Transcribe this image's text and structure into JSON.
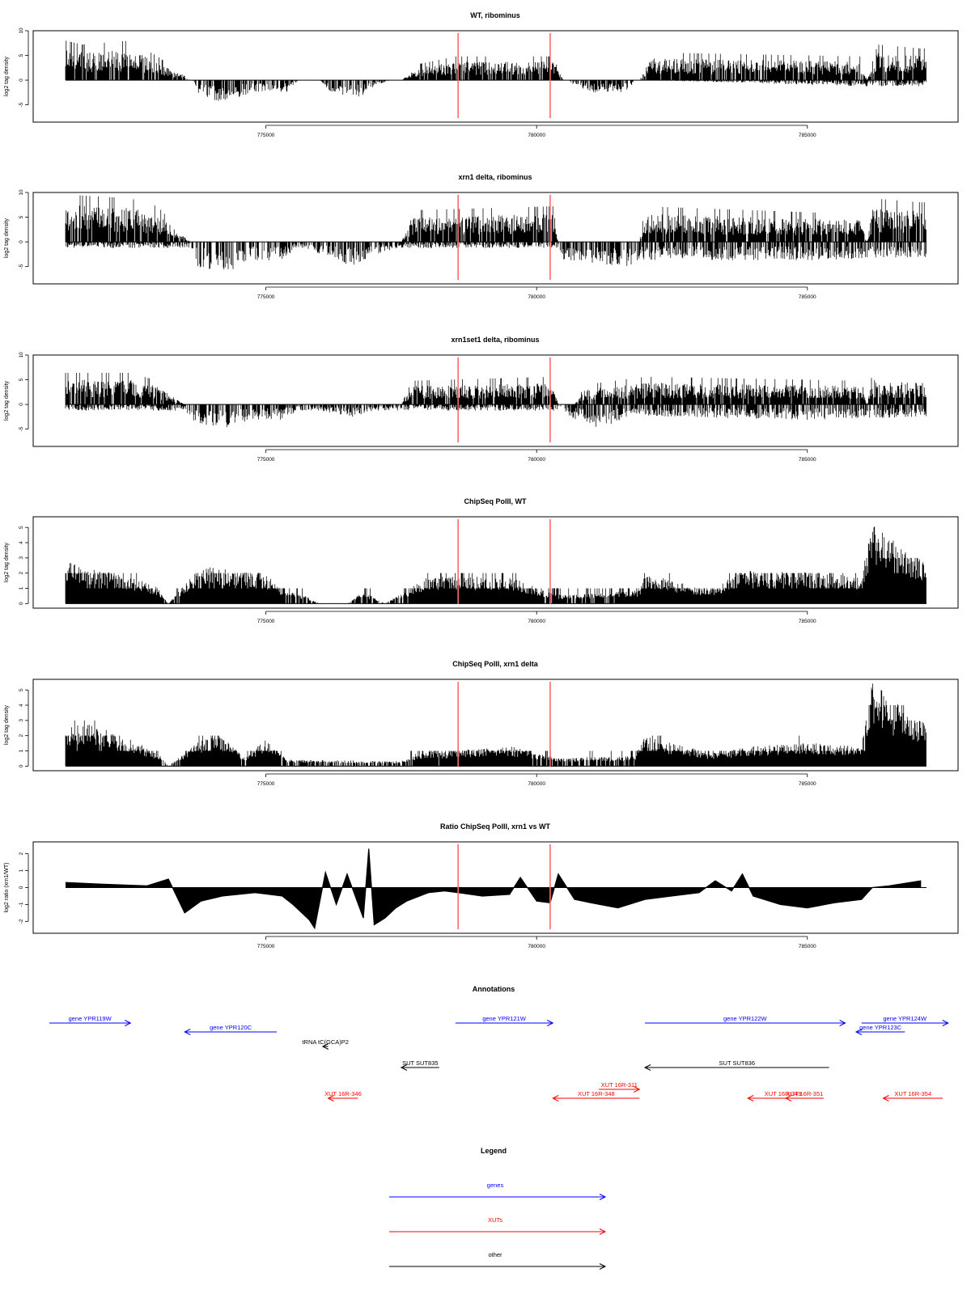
{
  "figure": {
    "x_domain": [
      771300,
      787200
    ],
    "x_ticks": [
      775000,
      780000,
      785000
    ],
    "marker_lines": [
      778550,
      780250
    ],
    "marker_color": "#ff6b6b"
  },
  "chart_data": [
    {
      "id": "wt-ribominus",
      "type": "bar",
      "title": "WT, ribominus",
      "ylabel": "log2 tag density",
      "ylim": [
        -8.5,
        10
      ],
      "yticks": [
        -5,
        0,
        5,
        10
      ],
      "xlabel": "",
      "grid": false,
      "signal_profile": {
        "plus": [
          [
            771300,
            5
          ],
          [
            771600,
            4.5
          ],
          [
            772500,
            5
          ],
          [
            773000,
            3
          ],
          [
            773600,
            0
          ],
          [
            777500,
            0
          ],
          [
            777800,
            2
          ],
          [
            778500,
            3
          ],
          [
            780300,
            3
          ],
          [
            780500,
            0
          ],
          [
            781900,
            0
          ],
          [
            782100,
            3.5
          ],
          [
            786000,
            3
          ],
          [
            786100,
            0
          ],
          [
            786300,
            4.5
          ],
          [
            787100,
            4
          ]
        ],
        "minus": [
          [
            771300,
            0
          ],
          [
            773650,
            0
          ],
          [
            773800,
            -3
          ],
          [
            774200,
            -3.5
          ],
          [
            774800,
            -2
          ],
          [
            775400,
            -2
          ],
          [
            775600,
            0
          ],
          [
            776000,
            0
          ],
          [
            776200,
            -2
          ],
          [
            776700,
            -3
          ],
          [
            777000,
            -1
          ],
          [
            777300,
            0
          ],
          [
            780600,
            0
          ],
          [
            780700,
            -1
          ],
          [
            781000,
            -2
          ],
          [
            781700,
            -2
          ],
          [
            781800,
            0
          ],
          [
            782000,
            0
          ],
          [
            786000,
            -1
          ],
          [
            787100,
            -1
          ]
        ]
      }
    },
    {
      "id": "xrn1-ribominus",
      "type": "bar",
      "title": "xrn1 delta, ribominus",
      "ylabel": "log2 tag density",
      "ylim": [
        -8.5,
        10
      ],
      "yticks": [
        -5,
        0,
        5,
        10
      ],
      "xlabel": "",
      "grid": false,
      "signal_profile": {
        "plus": [
          [
            771300,
            6
          ],
          [
            772500,
            5.5
          ],
          [
            773000,
            4.5
          ],
          [
            773600,
            0
          ],
          [
            777500,
            0
          ],
          [
            777700,
            4
          ],
          [
            780300,
            4.5
          ],
          [
            780400,
            0
          ],
          [
            781900,
            0
          ],
          [
            782000,
            4.5
          ],
          [
            786000,
            3.5
          ],
          [
            786100,
            0
          ],
          [
            786200,
            5.5
          ],
          [
            787100,
            5
          ]
        ],
        "minus": [
          [
            771300,
            -1
          ],
          [
            773600,
            -1
          ],
          [
            773700,
            -4
          ],
          [
            774300,
            -5
          ],
          [
            774800,
            -3
          ],
          [
            775300,
            -3
          ],
          [
            775600,
            -1
          ],
          [
            776000,
            -2
          ],
          [
            776600,
            -4
          ],
          [
            777000,
            -2
          ],
          [
            777500,
            -1
          ],
          [
            780400,
            -1
          ],
          [
            780500,
            -3
          ],
          [
            781500,
            -4
          ],
          [
            781700,
            -4
          ],
          [
            781900,
            -3
          ],
          [
            785000,
            -3
          ],
          [
            787100,
            -2.5
          ]
        ]
      }
    },
    {
      "id": "xrn1set1-ribominus",
      "type": "bar",
      "title": "xrn1set1 delta, ribominus",
      "ylabel": "log2 tag density",
      "ylim": [
        -8.5,
        10
      ],
      "yticks": [
        -5,
        0,
        5,
        10
      ],
      "xlabel": "",
      "grid": false,
      "signal_profile": {
        "plus": [
          [
            771300,
            4
          ],
          [
            772500,
            4
          ],
          [
            773000,
            3
          ],
          [
            773500,
            0
          ],
          [
            777500,
            0
          ],
          [
            777700,
            3
          ],
          [
            780300,
            3.5
          ],
          [
            780400,
            0
          ],
          [
            780700,
            0
          ],
          [
            780900,
            2.5
          ],
          [
            782000,
            3.5
          ],
          [
            786000,
            3
          ],
          [
            786100,
            0
          ],
          [
            786200,
            4
          ],
          [
            787100,
            3.5
          ]
        ],
        "minus": [
          [
            771300,
            -1
          ],
          [
            773500,
            -1
          ],
          [
            773700,
            -3
          ],
          [
            774200,
            -4
          ],
          [
            774800,
            -2.5
          ],
          [
            775300,
            -2.5
          ],
          [
            775600,
            -1
          ],
          [
            776000,
            -1
          ],
          [
            776600,
            -2
          ],
          [
            777000,
            -1
          ],
          [
            780400,
            -1
          ],
          [
            780600,
            -2
          ],
          [
            781200,
            -4
          ],
          [
            781700,
            -2
          ],
          [
            782500,
            -2
          ],
          [
            785000,
            -2.5
          ],
          [
            787100,
            -2
          ]
        ]
      }
    },
    {
      "id": "chipseq-wt",
      "type": "bar",
      "title": "ChipSeq PolII, WT",
      "ylabel": "log2 tag density",
      "ylim": [
        -0.3,
        5.7
      ],
      "yticks": [
        0,
        1,
        2,
        3,
        4,
        5
      ],
      "xlabel": "",
      "grid": false,
      "signal_profile": {
        "plus": [
          [
            771300,
            2.5
          ],
          [
            772500,
            1.6
          ],
          [
            773000,
            1
          ],
          [
            773200,
            0
          ],
          [
            773800,
            2.3
          ],
          [
            775100,
            1.6
          ],
          [
            775300,
            0.8
          ],
          [
            775700,
            0.5
          ],
          [
            776000,
            0
          ],
          [
            776500,
            0
          ],
          [
            776800,
            0.7
          ],
          [
            777200,
            0
          ],
          [
            777600,
            0.8
          ],
          [
            778000,
            1.6
          ],
          [
            779500,
            1.6
          ],
          [
            780300,
            0.6
          ],
          [
            780600,
            0.5
          ],
          [
            781900,
            0.8
          ],
          [
            782000,
            1.8
          ],
          [
            783200,
            0.8
          ],
          [
            783800,
            2
          ],
          [
            785500,
            1.8
          ],
          [
            786000,
            1.6
          ],
          [
            786200,
            4.8
          ],
          [
            786900,
            3
          ],
          [
            787100,
            2.6
          ]
        ]
      }
    },
    {
      "id": "chipseq-xrn1",
      "type": "bar",
      "title": "ChipSeq PolII, xrn1 delta",
      "ylabel": "log2 tag density",
      "ylim": [
        -0.3,
        5.7
      ],
      "yticks": [
        0,
        1,
        2,
        3,
        4,
        5
      ],
      "xlabel": "",
      "grid": false,
      "signal_profile": {
        "plus": [
          [
            771300,
            2.4
          ],
          [
            771800,
            2.5
          ],
          [
            772500,
            1.6
          ],
          [
            773000,
            0.8
          ],
          [
            773200,
            0
          ],
          [
            773800,
            1.6
          ],
          [
            774200,
            1.8
          ],
          [
            774600,
            0.5
          ],
          [
            775000,
            1.6
          ],
          [
            775400,
            0.4
          ],
          [
            777500,
            0.3
          ],
          [
            777800,
            0.8
          ],
          [
            779500,
            1.2
          ],
          [
            780200,
            0.6
          ],
          [
            780500,
            0.5
          ],
          [
            781800,
            0.6
          ],
          [
            782000,
            1.8
          ],
          [
            783200,
            0.8
          ],
          [
            784000,
            1.2
          ],
          [
            785000,
            1.4
          ],
          [
            786000,
            1.2
          ],
          [
            786200,
            5
          ],
          [
            786900,
            3.2
          ],
          [
            787100,
            2.8
          ]
        ]
      }
    },
    {
      "id": "ratio-chipseq",
      "type": "area",
      "title": "Ratio ChipSeq PolII, xrn1 vs WT",
      "ylabel": "log2 ratio (xrn1/WT)",
      "ylim": [
        -2.7,
        2.7
      ],
      "yticks": [
        -2,
        -1,
        0,
        1,
        2
      ],
      "xlabel": "",
      "grid": false,
      "x": [
        771300,
        772000,
        772800,
        773200,
        773500,
        773800,
        774200,
        774800,
        775300,
        775500,
        775800,
        775900,
        776100,
        776300,
        776500,
        776800,
        776900,
        777000,
        777200,
        777400,
        777600,
        778000,
        778300,
        778550,
        779000,
        779500,
        779700,
        780000,
        780250,
        780400,
        780700,
        781000,
        781500,
        782000,
        782500,
        783000,
        783300,
        783600,
        783800,
        784000,
        784500,
        785000,
        785500,
        786000,
        786200,
        786500,
        787100
      ],
      "y": [
        0.3,
        0.2,
        0.1,
        0.5,
        -1.5,
        -0.8,
        -0.5,
        -0.3,
        -0.5,
        -1,
        -1.9,
        -2.4,
        0.9,
        -1,
        0.8,
        -1.8,
        2.3,
        -2.2,
        -1.8,
        -1.2,
        -0.8,
        -0.3,
        -0.2,
        -0.3,
        -0.5,
        -0.4,
        0.6,
        -0.8,
        -0.9,
        0.8,
        -0.7,
        -0.9,
        -1.2,
        -0.7,
        -0.5,
        -0.3,
        0.4,
        -0.2,
        0.8,
        -0.5,
        -1,
        -1.2,
        -0.9,
        -0.7,
        0,
        0.1,
        0.4
      ]
    }
  ],
  "annotations": {
    "title": "Annotations",
    "items": [
      {
        "label": "gene YPR119W",
        "category": "genes",
        "start": 771000,
        "end": 772500,
        "direction": "forward",
        "row": 1
      },
      {
        "label": "gene YPR120C",
        "category": "genes",
        "start": 773500,
        "end": 775200,
        "direction": "reverse",
        "row": 2
      },
      {
        "label": "tRNA tC(GCA)P2",
        "category": "other",
        "start": 776050,
        "end": 776150,
        "direction": "reverse",
        "row": 3
      },
      {
        "label": "SUT SUT835",
        "category": "other",
        "start": 777500,
        "end": 778200,
        "direction": "reverse",
        "row": 4
      },
      {
        "label": "XUT 16R-346",
        "category": "XUTs",
        "start": 776150,
        "end": 776700,
        "direction": "reverse",
        "row": 5
      },
      {
        "label": "gene YPR121W",
        "category": "genes",
        "start": 778500,
        "end": 780300,
        "direction": "forward",
        "row": 1
      },
      {
        "label": "XUT 16R-311",
        "category": "XUTs",
        "start": 781150,
        "end": 781900,
        "direction": "forward",
        "row": 6
      },
      {
        "label": "XUT 16R-348",
        "category": "XUTs",
        "start": 780300,
        "end": 781900,
        "direction": "reverse",
        "row": 5
      },
      {
        "label": "gene YPR122W",
        "category": "genes",
        "start": 782000,
        "end": 785700,
        "direction": "forward",
        "row": 1
      },
      {
        "label": "SUT SUT836",
        "category": "other",
        "start": 782000,
        "end": 785400,
        "direction": "reverse",
        "row": 4
      },
      {
        "label": "XUT 16R-349",
        "category": "XUTs",
        "start": 783900,
        "end": 785200,
        "direction": "reverse",
        "row": 5
      },
      {
        "label": "XUT 16R-351",
        "category": "XUTs",
        "start": 784600,
        "end": 785300,
        "direction": "reverse",
        "row": 5
      },
      {
        "label": "gene YPR123C",
        "category": "genes",
        "start": 785900,
        "end": 786800,
        "direction": "reverse",
        "row": 2
      },
      {
        "label": "gene YPR124W",
        "category": "genes",
        "start": 786000,
        "end": 787600,
        "direction": "forward",
        "row": 1
      },
      {
        "label": "XUT 16R-354",
        "category": "XUTs",
        "start": 786400,
        "end": 787500,
        "direction": "reverse",
        "row": 5
      }
    ]
  },
  "legend": {
    "title": "Legend",
    "items": [
      {
        "label": "genes",
        "color": "#0000ff"
      },
      {
        "label": "XUTs",
        "color": "#ff0000"
      },
      {
        "label": "other",
        "color": "#000000"
      }
    ]
  },
  "colors": {
    "genes": "#0000ff",
    "XUTs": "#ff0000",
    "other": "#000000",
    "signal": "#000000"
  }
}
